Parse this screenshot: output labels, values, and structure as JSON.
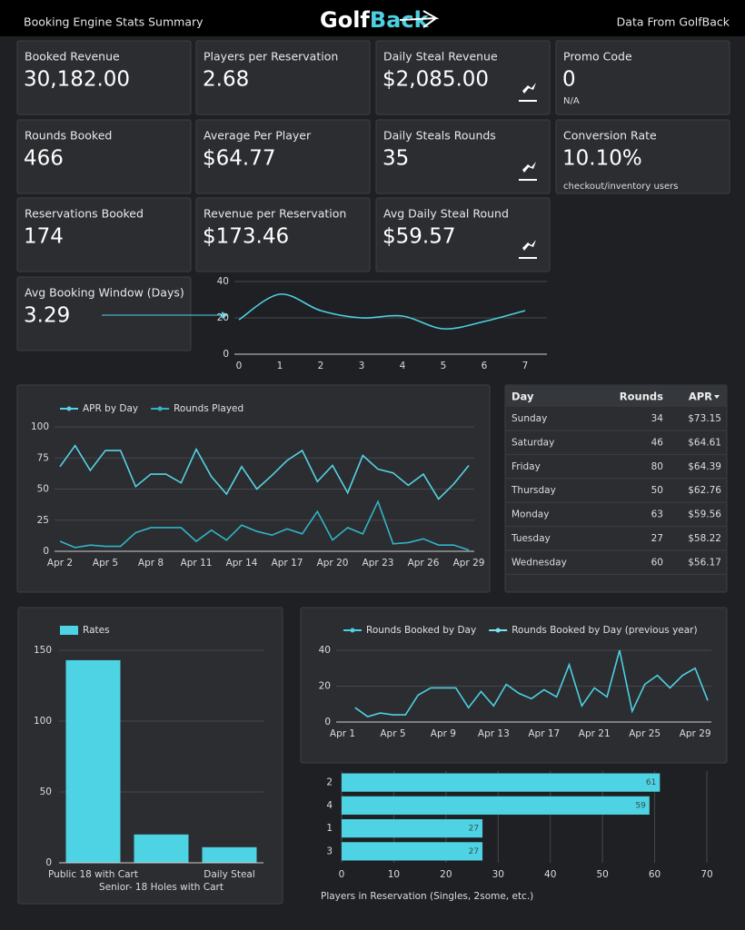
{
  "header": {
    "left": "Booking Engine Stats Summary",
    "logo": [
      "Golf",
      "Back"
    ],
    "right": "Data From GolfBack"
  },
  "kpis": [
    {
      "label": "Booked Revenue",
      "value": "30,182.00"
    },
    {
      "label": "Players per Reservation",
      "value": "2.68"
    },
    {
      "label": "Daily Steal Revenue",
      "value": "$2,085.00"
    },
    {
      "label": "Promo Code",
      "value": "0",
      "note": "N/A"
    },
    {
      "label": "Rounds Booked",
      "value": "466"
    },
    {
      "label": "Average Per Player",
      "value": "$64.77"
    },
    {
      "label": "Daily Steals Rounds",
      "value": "35"
    },
    {
      "label": "Conversion Rate",
      "value": "10.10%",
      "note": "checkout/inventory users"
    },
    {
      "label": "Reservations Booked",
      "value": "174"
    },
    {
      "label": "Revenue per Reservation",
      "value": "$173.46"
    },
    {
      "label": "Avg Daily Steal Round",
      "value": "$59.57"
    },
    {
      "label": "Avg Booking Window (Days)",
      "value": "3.29"
    }
  ],
  "table": {
    "columns": [
      "Day",
      "Rounds",
      "APR"
    ],
    "rows": [
      [
        "Sunday",
        34,
        "$73.15"
      ],
      [
        "Saturday",
        46,
        "$64.61"
      ],
      [
        "Friday",
        80,
        "$64.39"
      ],
      [
        "Thursday",
        50,
        "$62.76"
      ],
      [
        "Monday",
        63,
        "$59.56"
      ],
      [
        "Tuesday",
        27,
        "$58.22"
      ],
      [
        "Wednesday",
        60,
        "$56.17"
      ]
    ]
  },
  "chart_data": [
    {
      "type": "line",
      "smooth": true,
      "x": [
        0,
        1,
        2,
        3,
        4,
        5,
        6,
        7
      ],
      "values": [
        19,
        33,
        24,
        20,
        21,
        14,
        18,
        24
      ],
      "color": "#4dd0e1",
      "xlim": [
        0,
        7
      ],
      "xticks": [
        0,
        1,
        2,
        3,
        4,
        5,
        6,
        7
      ],
      "ylim": [
        0,
        40
      ],
      "yticks": [
        0,
        20,
        40
      ],
      "grid": true
    },
    {
      "type": "line",
      "legend": "top",
      "categories": [
        "Apr 2",
        null,
        null,
        "Apr 5",
        null,
        null,
        "Apr 8",
        null,
        null,
        "Apr 11",
        null,
        null,
        "Apr 14",
        null,
        null,
        "Apr 17",
        null,
        null,
        "Apr 20",
        null,
        null,
        "Apr 23",
        null,
        null,
        "Apr 26",
        null,
        null,
        "Apr 29"
      ],
      "series": [
        {
          "name": "APR by Day",
          "color": "#56d3e3",
          "values": [
            68,
            85,
            65,
            81,
            81,
            52,
            62,
            62,
            55,
            82,
            60,
            46,
            68,
            50,
            61,
            73,
            81,
            56,
            69,
            47,
            77,
            66,
            63,
            53,
            62,
            42,
            54,
            69
          ]
        },
        {
          "name": "Rounds Played",
          "color": "#32b4c6",
          "values": [
            8,
            3,
            5,
            4,
            4,
            15,
            19,
            19,
            19,
            8,
            17,
            9,
            21,
            16,
            13,
            18,
            14,
            32,
            9,
            19,
            14,
            40,
            6,
            7,
            10,
            5,
            5,
            1
          ]
        }
      ],
      "ylim": [
        0,
        100
      ],
      "yticks": [
        0,
        25,
        50,
        75,
        100
      ],
      "grid": true
    },
    {
      "type": "bar",
      "legend": "top",
      "categories": [
        "Public 18 with Cart",
        "Senior- 18 Holes with Cart",
        "Daily Steal"
      ],
      "series": [
        {
          "name": "Rates",
          "color": "#4dd3e3",
          "values": [
            143,
            20,
            11
          ]
        }
      ],
      "ylim": [
        0,
        150
      ],
      "yticks": [
        0,
        50,
        100,
        150
      ],
      "grid": true
    },
    {
      "type": "line",
      "legend": "top",
      "categories": [
        "Apr 1",
        null,
        null,
        null,
        "Apr 5",
        null,
        null,
        null,
        "Apr 9",
        null,
        null,
        null,
        "Apr 13",
        null,
        null,
        null,
        "Apr 17",
        null,
        null,
        null,
        "Apr 21",
        null,
        null,
        null,
        "Apr 25",
        null,
        null,
        null,
        "Apr 29",
        null
      ],
      "series": [
        {
          "name": "Rounds Booked by Day",
          "color": "#4dd0e1",
          "values": [
            null,
            8,
            3,
            5,
            4,
            4,
            15,
            19,
            19,
            19,
            8,
            17,
            9,
            21,
            16,
            13,
            18,
            14,
            32,
            9,
            19,
            14,
            40,
            6,
            21,
            26,
            19,
            26,
            30,
            12
          ]
        },
        {
          "name": "Rounds Booked by Day (previous year)",
          "color": "#7fe3ef",
          "values": [
            null,
            null,
            null,
            null,
            null,
            null,
            null,
            null,
            null,
            null,
            null,
            null,
            null,
            null,
            null,
            null,
            null,
            null,
            null,
            null,
            null,
            null,
            null,
            null,
            null,
            null,
            null,
            null,
            null,
            null
          ]
        }
      ],
      "ylim": [
        0,
        40
      ],
      "yticks": [
        0,
        20,
        40
      ],
      "grid": true
    },
    {
      "type": "hbar",
      "categories": [
        "2",
        "4",
        "1",
        "3"
      ],
      "values": [
        61,
        59,
        27,
        27
      ],
      "color": "#4dd3e3",
      "data_labels": true,
      "xlim": [
        0,
        70
      ],
      "xticks": [
        0,
        10,
        20,
        30,
        40,
        50,
        60,
        70
      ],
      "xlabel": "Players in Reservation (Singles, 2some, etc.)",
      "grid": true
    }
  ]
}
